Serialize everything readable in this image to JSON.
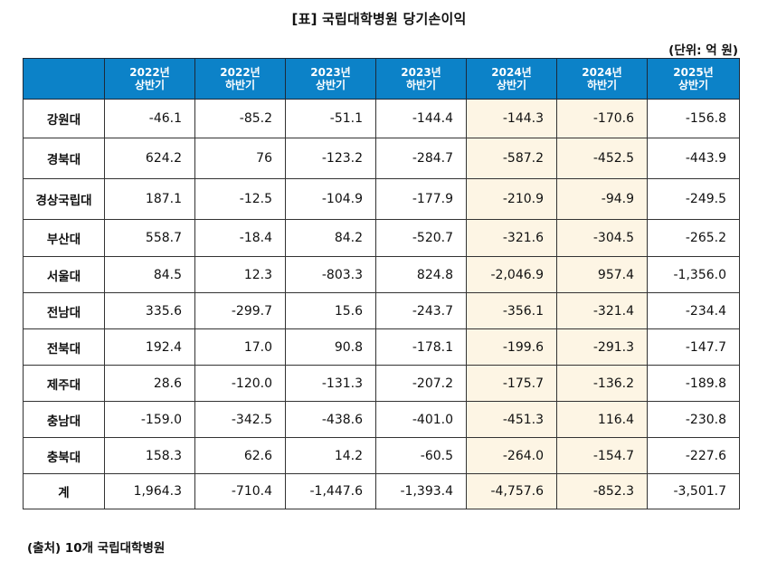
{
  "title": "[표] 국립대학병원 당기손이익",
  "unit": "(단위: 억 원)",
  "table": {
    "columns": [
      {
        "year": "",
        "half": ""
      },
      {
        "year": "2022년",
        "half": "상반기"
      },
      {
        "year": "2022년",
        "half": "하반기"
      },
      {
        "year": "2023년",
        "half": "상반기"
      },
      {
        "year": "2023년",
        "half": "하반기"
      },
      {
        "year": "2024년",
        "half": "상반기"
      },
      {
        "year": "2024년",
        "half": "하반기"
      },
      {
        "year": "2025년",
        "half": "상반기"
      }
    ],
    "highlight_columns": [
      "2024년 상반기",
      "2024년 하반기"
    ],
    "rows": [
      {
        "name": "강원대",
        "values": [
          "-46.1",
          "-85.2",
          "-51.1",
          "-144.4",
          "-144.3",
          "-170.6",
          "-156.8"
        ]
      },
      {
        "name": "경북대",
        "values": [
          "624.2",
          "76",
          "-123.2",
          "-284.7",
          "-587.2",
          "-452.5",
          "-443.9"
        ]
      },
      {
        "name": "경상국립대",
        "values": [
          "187.1",
          "-12.5",
          "-104.9",
          "-177.9",
          "-210.9",
          "-94.9",
          "-249.5"
        ]
      },
      {
        "name": "부산대",
        "values": [
          "558.7",
          "-18.4",
          "84.2",
          "-520.7",
          "-321.6",
          "-304.5",
          "-265.2"
        ]
      },
      {
        "name": "서울대",
        "values": [
          "84.5",
          "12.3",
          "-803.3",
          "824.8",
          "-2,046.9",
          "957.4",
          "-1,356.0"
        ]
      },
      {
        "name": "전남대",
        "values": [
          "335.6",
          "-299.7",
          "15.6",
          "-243.7",
          "-356.1",
          "-321.4",
          "-234.4"
        ]
      },
      {
        "name": "전북대",
        "values": [
          "192.4",
          "17.0",
          "90.8",
          "-178.1",
          "-199.6",
          "-291.3",
          "-147.7"
        ]
      },
      {
        "name": "제주대",
        "values": [
          "28.6",
          "-120.0",
          "-131.3",
          "-207.2",
          "-175.7",
          "-136.2",
          "-189.8"
        ]
      },
      {
        "name": "충남대",
        "values": [
          "-159.0",
          "-342.5",
          "-438.6",
          "-401.0",
          "-451.3",
          "116.4",
          "-230.8"
        ]
      },
      {
        "name": "충북대",
        "values": [
          "158.3",
          "62.6",
          "14.2",
          "-60.5",
          "-264.0",
          "-154.7",
          "-227.6"
        ]
      },
      {
        "name": "계",
        "values": [
          "1,964.3",
          "-710.4",
          "-1,447.6",
          "-1,393.4",
          "-4,757.6",
          "-852.3",
          "-3,501.7"
        ]
      }
    ]
  },
  "source": "(출처) 10개 국립대학병원",
  "colors": {
    "header_bg": "#0c82c8",
    "header_text": "#ffffff",
    "highlight_bg": "#fdf5e4",
    "border": "#333333"
  }
}
